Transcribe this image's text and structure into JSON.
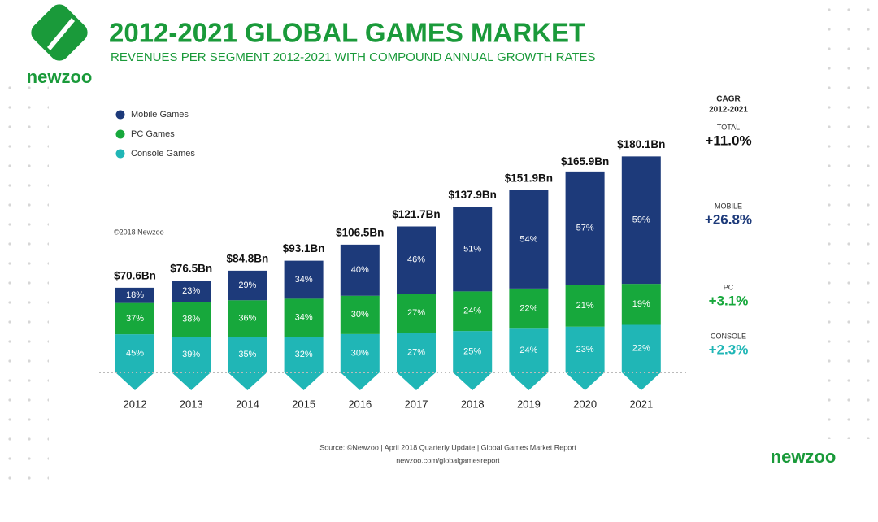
{
  "chart_data": {
    "type": "stacked_bar",
    "title": "2012-2021 GLOBAL GAMES MARKET",
    "subtitle": "REVENUES PER SEGMENT 2012-2021 WITH COMPOUND ANNUAL GROWTH RATES",
    "categories": [
      "2012",
      "2013",
      "2014",
      "2015",
      "2016",
      "2017",
      "2018",
      "2019",
      "2020",
      "2021"
    ],
    "series": [
      {
        "name": "Mobile Games",
        "color": "#1d3a7a",
        "values": [
          18,
          23,
          29,
          34,
          40,
          46,
          51,
          54,
          57,
          59
        ],
        "value_labels": [
          "18%",
          "23%",
          "29%",
          "34%",
          "40%",
          "46%",
          "51%",
          "54%",
          "57%",
          "59%"
        ]
      },
      {
        "name": "PC Games",
        "color": "#17a83c",
        "values": [
          37,
          38,
          36,
          34,
          30,
          27,
          24,
          22,
          21,
          19
        ],
        "value_labels": [
          "37%",
          "38%",
          "36%",
          "34%",
          "30%",
          "27%",
          "24%",
          "22%",
          "21%",
          "19%"
        ]
      },
      {
        "name": "Console Games",
        "color": "#20b6b6",
        "values": [
          45,
          39,
          35,
          32,
          30,
          27,
          25,
          24,
          23,
          22
        ],
        "value_labels": [
          "45%",
          "39%",
          "35%",
          "32%",
          "30%",
          "27%",
          "25%",
          "24%",
          "23%",
          "22%"
        ]
      }
    ],
    "totals": {
      "values": [
        70.6,
        76.5,
        84.8,
        93.1,
        106.5,
        121.7,
        137.9,
        151.9,
        165.9,
        180.1
      ],
      "value_labels": [
        "$70.6Bn",
        "$76.5Bn",
        "$84.8Bn",
        "$93.1Bn",
        "$106.5Bn",
        "$121.7Bn",
        "$137.9Bn",
        "$151.9Bn",
        "$165.9Bn",
        "$180.1Bn"
      ]
    },
    "copyright": "©2018 Newzoo",
    "cagr": {
      "title": [
        "CAGR",
        "2012-2021"
      ],
      "items": [
        {
          "name": "TOTAL",
          "label": "+11.0%",
          "color": "#111111"
        },
        {
          "name": "MOBILE",
          "label": "+26.8%",
          "color": "#1d3a7a"
        },
        {
          "name": "PC",
          "label": "+3.1%",
          "color": "#17a83c"
        },
        {
          "name": "CONSOLE",
          "label": "+2.3%",
          "color": "#20b6b6"
        }
      ]
    },
    "source": "Source: ©Newzoo | April 2018 Quarterly Update | Global Games Market Report",
    "url": "newzoo.com/globalgamesreport",
    "brand": "newzoo"
  }
}
